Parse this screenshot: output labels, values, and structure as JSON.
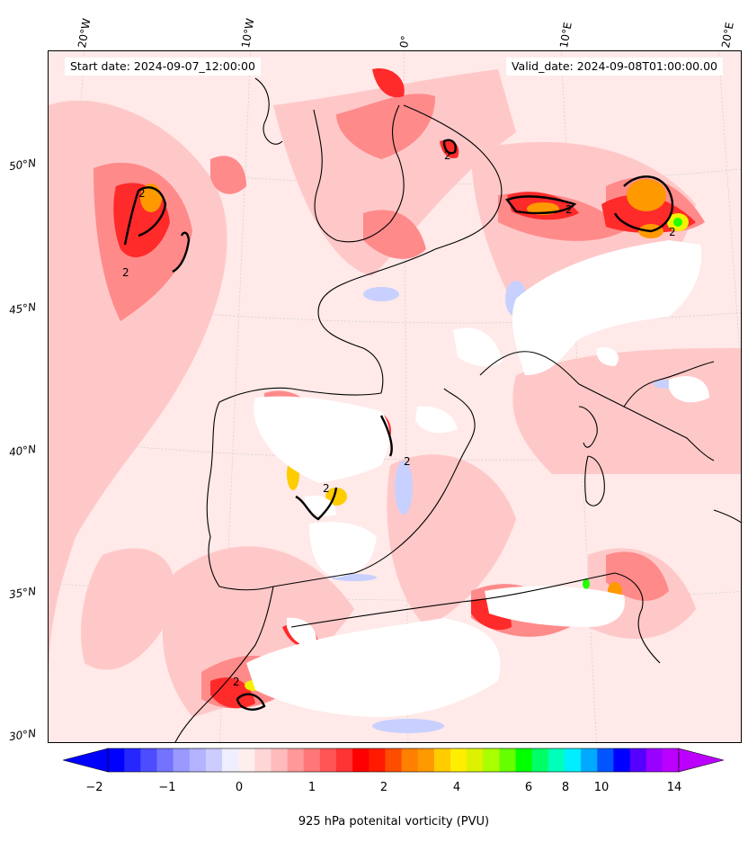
{
  "map": {
    "start_date": "Start date: 2024-09-07_12:00:00",
    "valid_date": "Valid_date: 2024-09-08T01:00:00.00",
    "lon_labels": [
      "20°W",
      "10°W",
      "0°",
      "10°E",
      "20°E"
    ],
    "lat_labels": [
      "50°N",
      "45°N",
      "40°N",
      "35°N",
      "30°N"
    ],
    "contour_labels": [
      "2",
      "2",
      "2",
      "2",
      "2",
      "2",
      "2",
      "2"
    ],
    "colors": {
      "background": "#ffe9e9",
      "light_red": "#ffc8c8",
      "medium_red": "#ff8a8a",
      "red": "#ff2a2a",
      "orange": "#ff9900",
      "yellow": "#f2f200",
      "green": "#22ff00",
      "blue": "#3344ff",
      "masked": "#ffffff",
      "coast": "#000000"
    }
  },
  "colorbar": {
    "label": "925 hPa potenital vorticity (PVU)",
    "tick_labels": [
      "−2",
      "−1",
      "0",
      "1",
      "2",
      "4",
      "6",
      "8",
      "10",
      "14"
    ],
    "colors": [
      "#0000ff",
      "#2626ff",
      "#4d4dff",
      "#7373ff",
      "#9999ff",
      "#b3b3ff",
      "#ccccff",
      "#eeeeff",
      "#ffeeee",
      "#ffd6d6",
      "#ffbbbb",
      "#ff9999",
      "#ff7777",
      "#ff5555",
      "#ff3333",
      "#ff0000",
      "#ff1a00",
      "#ff4d00",
      "#ff8000",
      "#ff9900",
      "#ffcc00",
      "#ffee00",
      "#ddf200",
      "#aaff00",
      "#66ff00",
      "#00ff00",
      "#00ff66",
      "#00ffbb",
      "#00eeff",
      "#00aaff",
      "#0055ff",
      "#0000ff",
      "#5500ff",
      "#9900ff",
      "#bb00ff"
    ]
  }
}
